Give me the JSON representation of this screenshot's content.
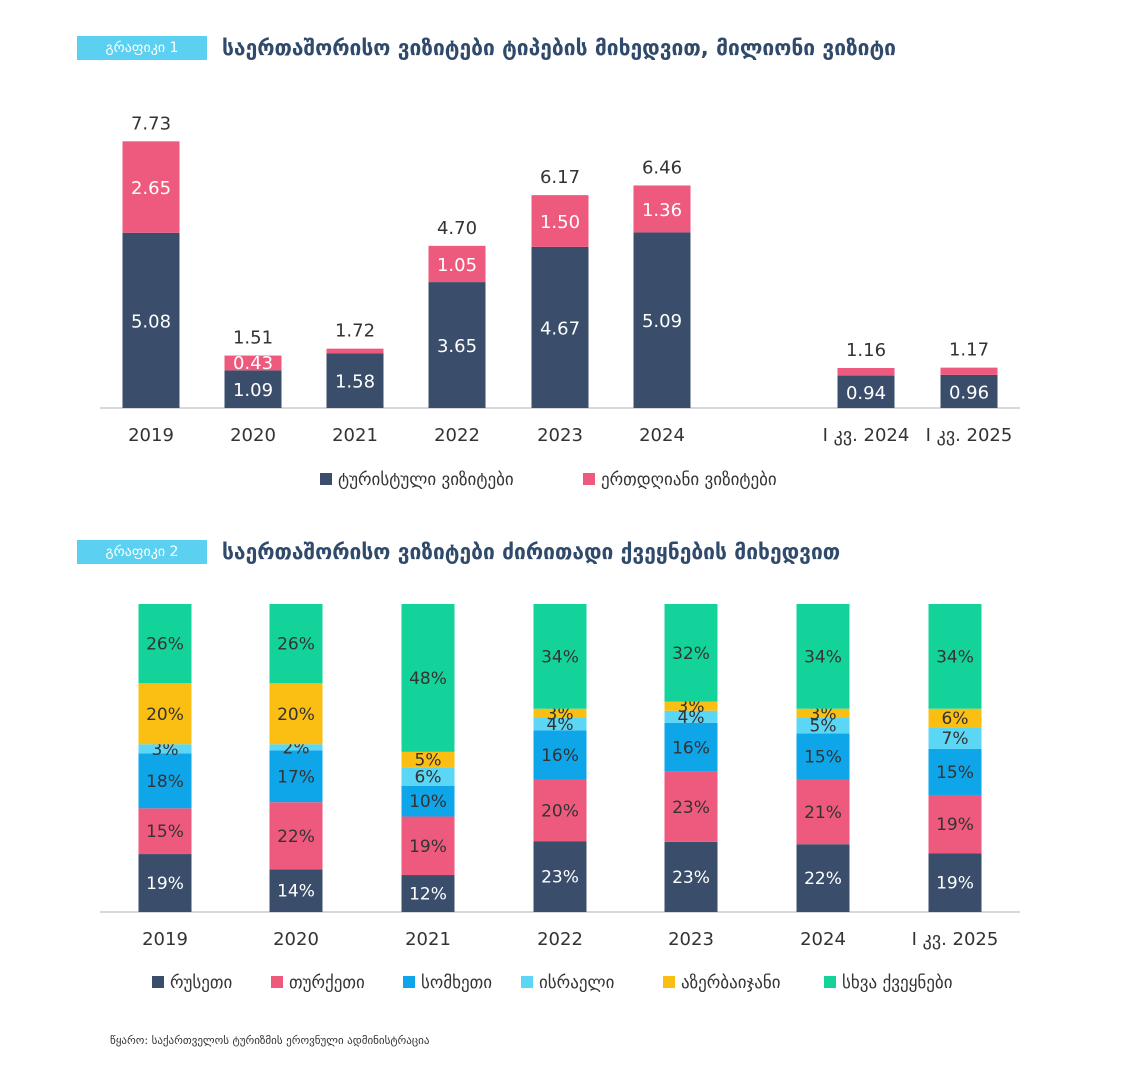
{
  "chart1": {
    "tag": "გრაფიკი 1",
    "title": "საერთაშორისო ვიზიტები ტიპების მიხედვით, მილიონი ვიზიტი",
    "colors": {
      "tourist": "#3a4e6b",
      "sameday": "#ee5a7e",
      "axis": "#cccccc"
    },
    "legend": [
      "ტურისტული ვიზიტები",
      "ერთდღიანი ვიზიტები"
    ]
  },
  "chart2": {
    "tag": "გრაფიკი 2",
    "title": "საერთაშორისო ვიზიტები ძირითადი ქვეყნების მიხედვით",
    "colors": [
      "#3a4e6b",
      "#ee5a7e",
      "#0ea5e9",
      "#5bd6f5",
      "#fbbf14",
      "#13d39a"
    ]
  },
  "source": "წყარო: საქართველოს ტურიზმის ეროვნული ადმინისტრაცია",
  "chart_data": [
    {
      "type": "bar",
      "stacked": true,
      "title": "საერთაშორისო ვიზიტები ტიპების მიხედვით, მილიონი ვიზიტი",
      "categories": [
        "2019",
        "2020",
        "2021",
        "2022",
        "2023",
        "2024",
        "I კვ. 2024",
        "I კვ. 2025"
      ],
      "series": [
        {
          "name": "ტურისტული ვიზიტები",
          "values": [
            5.08,
            1.09,
            1.58,
            3.65,
            4.67,
            5.09,
            0.94,
            0.96
          ]
        },
        {
          "name": "ერთდღიანი ვიზიტები",
          "values": [
            2.65,
            0.43,
            0.14,
            1.05,
            1.5,
            1.36,
            0.22,
            0.21
          ]
        }
      ],
      "series_labels": [
        [
          "5.08",
          "1.09",
          "1.58",
          "3.65",
          "4.67",
          "5.09",
          "0.94",
          "0.96"
        ],
        [
          "2.65",
          "0.43",
          "",
          "1.05",
          "1.50",
          "1.36",
          "",
          ""
        ]
      ],
      "totals": [
        "7.73",
        "1.51",
        "1.72",
        "4.70",
        "6.17",
        "6.46",
        "1.16",
        "1.17"
      ],
      "legend": "bottom",
      "grid": false
    },
    {
      "type": "bar",
      "stacked": true,
      "percent": true,
      "title": "საერთაშორისო ვიზიტები ძირითადი ქვეყნების მიხედვით",
      "categories": [
        "2019",
        "2020",
        "2021",
        "2022",
        "2023",
        "2024",
        "I კვ. 2025"
      ],
      "series": [
        {
          "name": "რუსეთი",
          "values": [
            19,
            14,
            12,
            23,
            23,
            22,
            19
          ]
        },
        {
          "name": "თურქეთი",
          "values": [
            15,
            22,
            19,
            20,
            23,
            21,
            19
          ]
        },
        {
          "name": "სომხეთი",
          "values": [
            18,
            17,
            10,
            16,
            16,
            15,
            15
          ]
        },
        {
          "name": "ისრაელი",
          "values": [
            3,
            2,
            6,
            4,
            4,
            5,
            7
          ]
        },
        {
          "name": "აზერბაიჯანი",
          "values": [
            20,
            20,
            5,
            3,
            3,
            3,
            6
          ]
        },
        {
          "name": "სხვა ქვეყნები",
          "values": [
            26,
            26,
            48,
            34,
            32,
            34,
            34
          ]
        }
      ],
      "legend": "bottom",
      "grid": false
    }
  ]
}
